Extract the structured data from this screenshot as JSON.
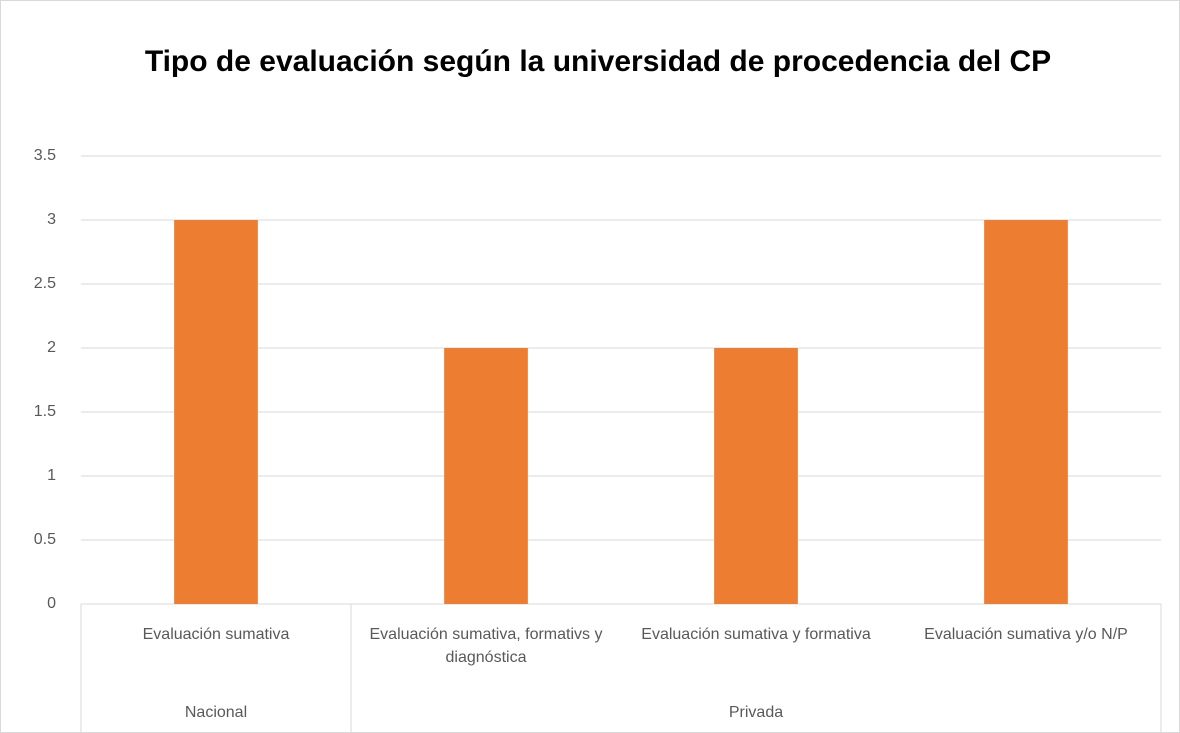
{
  "chart_data": {
    "type": "bar",
    "title": "Tipo de evaluación según la universidad de procedencia del CP",
    "categories": [
      "Evaluación sumativa",
      "Evaluación sumativa, formativs y diagnóstica",
      "Evaluación sumativa y formativa",
      "Evaluación sumativa y/o N/P"
    ],
    "groups": [
      {
        "name": "Nacional",
        "span": 1
      },
      {
        "name": "Privada",
        "span": 3
      }
    ],
    "values": [
      3,
      2,
      2,
      3
    ],
    "color": "#ed7d31",
    "ylim": [
      0,
      3.5
    ],
    "yticks": [
      0,
      0.5,
      1,
      1.5,
      2,
      2.5,
      3,
      3.5
    ],
    "grid": true
  }
}
